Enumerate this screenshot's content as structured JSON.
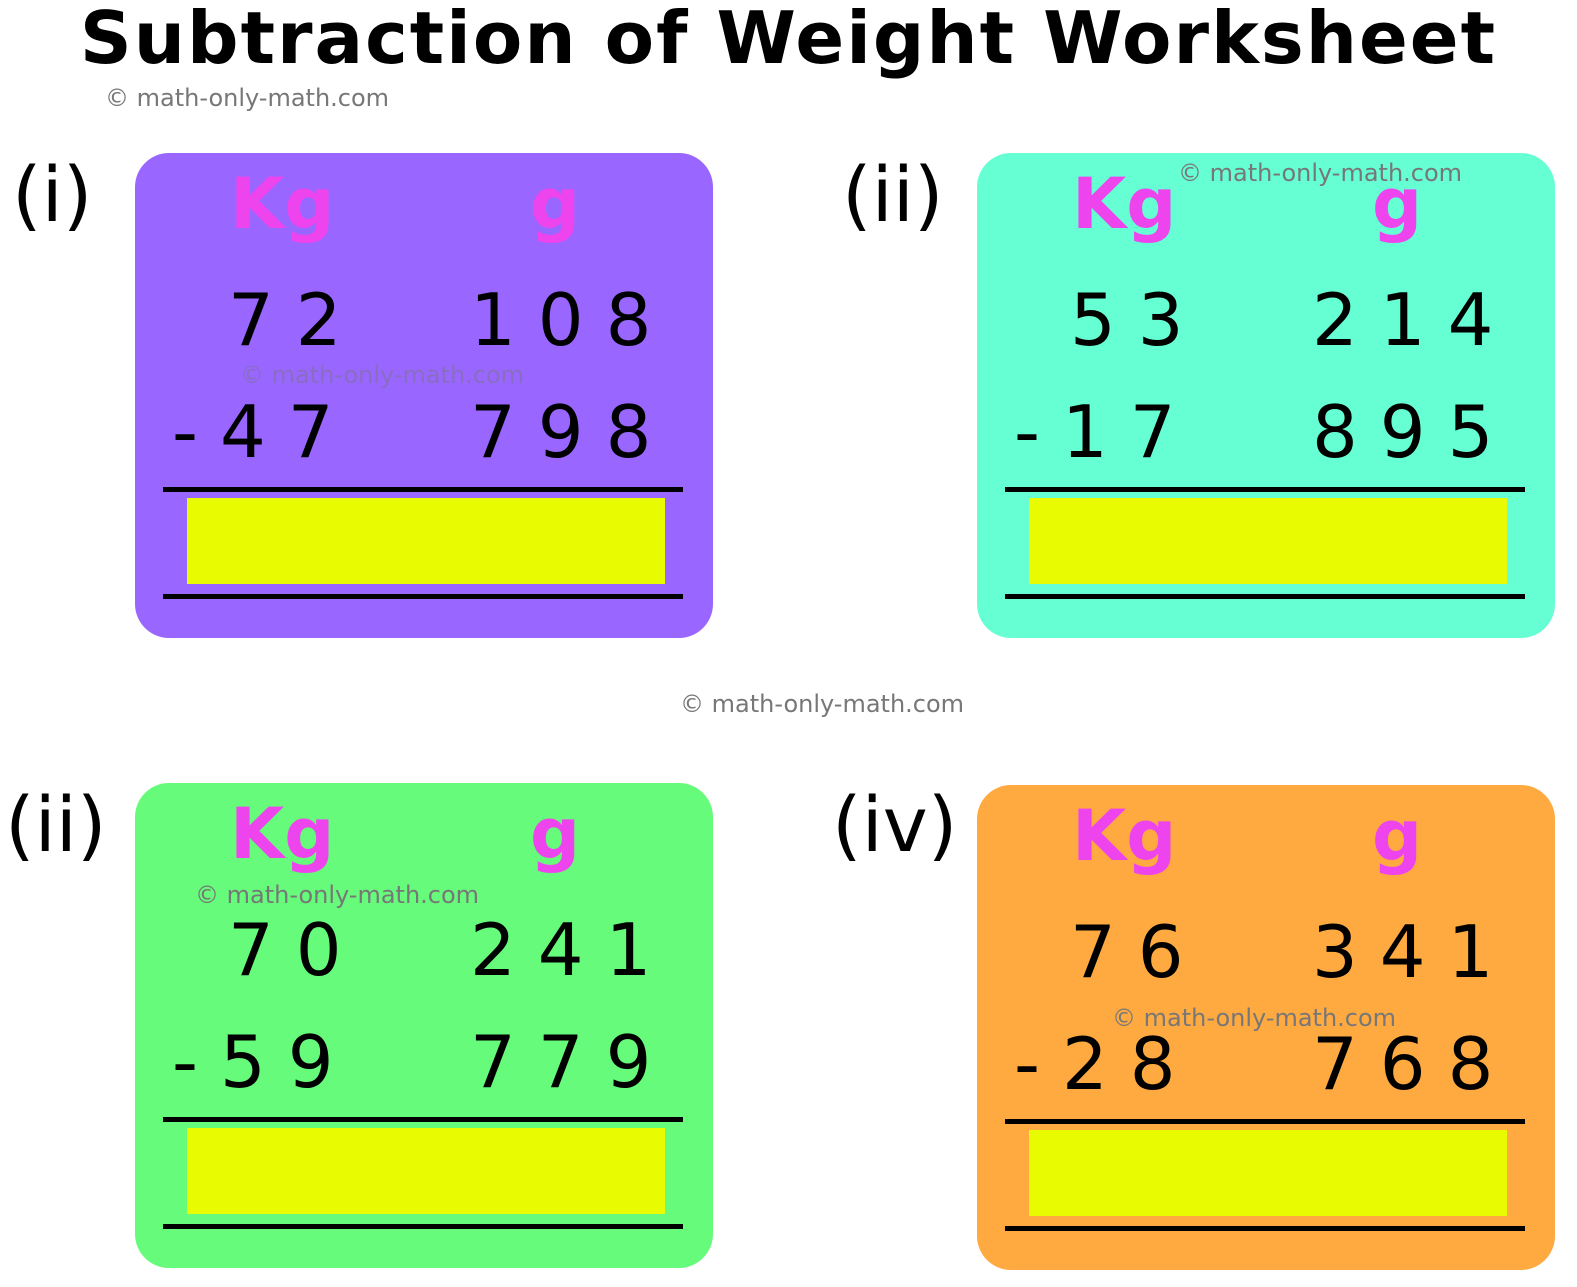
{
  "header": {
    "title": "Subtraction of Weight Worksheet",
    "watermark": "© math-only-math.com"
  },
  "center_watermark": "© math-only-math.com",
  "problems": [
    {
      "label": "(i)",
      "units": [
        "Kg",
        "g"
      ],
      "top": [
        "72",
        "108"
      ],
      "bottom": [
        "-47",
        "798"
      ],
      "watermark": "© math-only-math.com"
    },
    {
      "label": "(ii)",
      "units": [
        "Kg",
        "g"
      ],
      "top": [
        "53",
        "214"
      ],
      "bottom": [
        "-17",
        "895"
      ],
      "watermark": "© math-only-math.com"
    },
    {
      "label": "(ii)",
      "units": [
        "Kg",
        "g"
      ],
      "top": [
        "70",
        "241"
      ],
      "bottom": [
        "-59",
        "779"
      ],
      "watermark": "© math-only-math.com"
    },
    {
      "label": "(iv)",
      "units": [
        "Kg",
        "g"
      ],
      "top": [
        "76",
        "341"
      ],
      "bottom": [
        "-28",
        "768"
      ],
      "watermark": "© math-only-math.com"
    }
  ]
}
